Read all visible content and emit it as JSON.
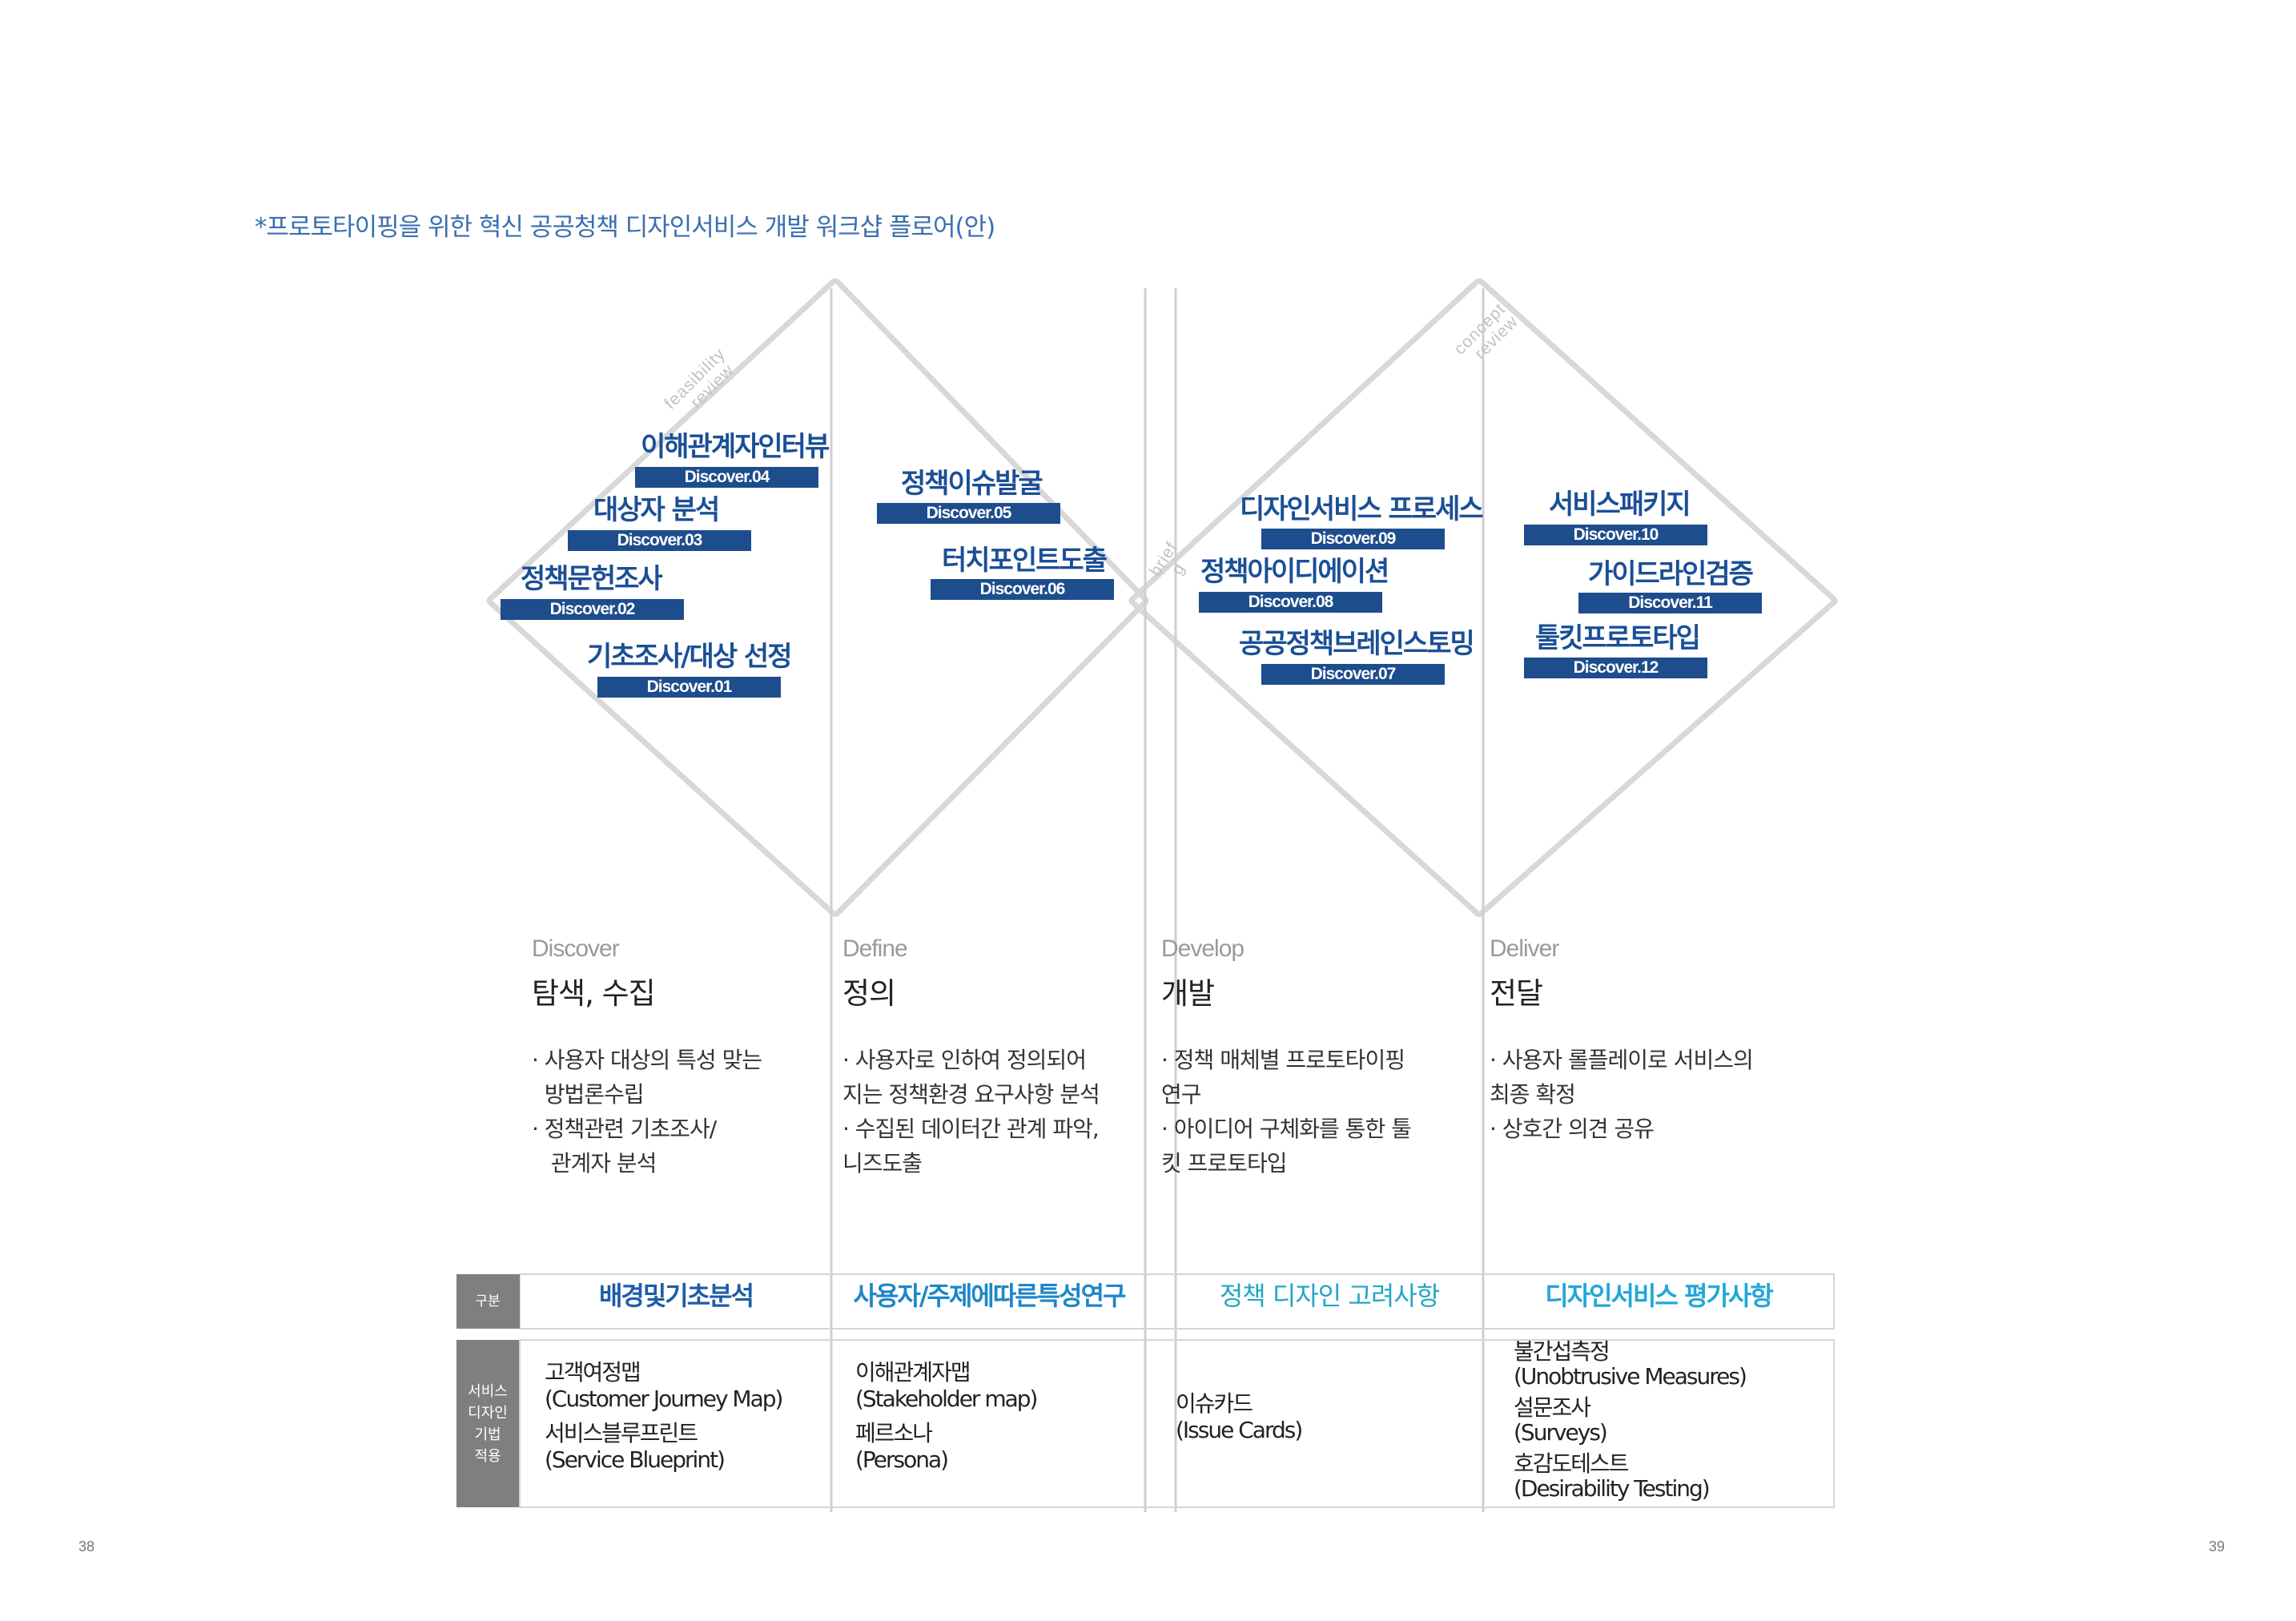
{
  "heading": "*프로토타이핑을 위한 혁신 공공청책 디자인서비스 개발 워크샵 플로어(안)",
  "review_labels": {
    "feasibility_line1": "feasibility",
    "feasibility_line2": "review",
    "concept_line1": "concept",
    "concept_line2": "review",
    "brief_line1": "brief",
    "brief_line2": "g"
  },
  "cards": [
    {
      "title": "이해관계자인터뷰",
      "tag": "Discover.04"
    },
    {
      "title": "대상자 분석",
      "tag": "Discover.03"
    },
    {
      "title": "정책문헌조사",
      "tag": "Discover.02"
    },
    {
      "title": "기초조사/대상 선정",
      "tag": "Discover.01"
    },
    {
      "title": "정책이슈발굴",
      "tag": "Discover.05"
    },
    {
      "title": "터치포인트도출",
      "tag": "Discover.06"
    },
    {
      "title": "디자인서비스 프로세스",
      "tag": "Discover.09"
    },
    {
      "title": "정책아이디에이션",
      "tag": "Discover.08"
    },
    {
      "title": "공공정책브레인스토밍",
      "tag": "Discover.07"
    },
    {
      "title": "서비스패키지",
      "tag": "Discover.10"
    },
    {
      "title": "가이드라인검증",
      "tag": "Discover.11"
    },
    {
      "title": "툴킷프로토타입",
      "tag": "Discover.12"
    }
  ],
  "phases": [
    {
      "en": "Discover",
      "ko": "탐색, 수집",
      "bullets": [
        "· 사용자 대상의 특성 맞는",
        "  방법론수립",
        "· 정책관련 기초조사/",
        "   관계자 분석"
      ]
    },
    {
      "en": "Define",
      "ko": "정의",
      "bullets": [
        "· 사용자로 인하여 정의되어",
        "지는 정책환경 요구사항 분석",
        "· 수집된 데이터간 관계 파악,",
        "니즈도출"
      ]
    },
    {
      "en": "Develop",
      "ko": "개발",
      "bullets": [
        "· 정책 매체별 프로토타이핑",
        "연구",
        "· 아이디어 구체화를 통한 툴",
        "킷 프로토타입"
      ]
    },
    {
      "en": "Deliver",
      "ko": "전달",
      "bullets": [
        "· 사용자 롤플레이로 서비스의",
        "최종 확정",
        "· 상호간 의견 공유"
      ]
    }
  ],
  "table": {
    "header_label": "구분",
    "row_label": "서비스\n디자인\n기법\n적용",
    "columns": [
      {
        "title": "배경및기초분석",
        "color": "#1f5da8",
        "items": [
          [
            "고객여정맵",
            "(Customer Journey Map)"
          ],
          [
            "서비스블루프린트",
            "(Service Blueprint)"
          ]
        ]
      },
      {
        "title": "사용자/주제에따른특성연구",
        "color": "#1e86c8",
        "items": [
          [
            "이해관계자맵",
            "(Stakeholder map)"
          ],
          [
            "페르소나",
            "(Persona)"
          ]
        ]
      },
      {
        "title": "정책 디자인 고려사항",
        "color": "#22a7c4",
        "items": [
          [
            "이슈카드",
            "(Issue Cards)"
          ]
        ]
      },
      {
        "title": "디자인서비스 평가사항",
        "color": "#22a7d8",
        "items": [
          [
            "불간섭측정",
            "(Unobtrusive Measures)"
          ],
          [
            "설문조사",
            "(Surveys)"
          ],
          [
            "호감도테스트",
            "(Desirability Testing)"
          ]
        ]
      }
    ]
  },
  "page_numbers": {
    "left": "38",
    "right": "39"
  }
}
